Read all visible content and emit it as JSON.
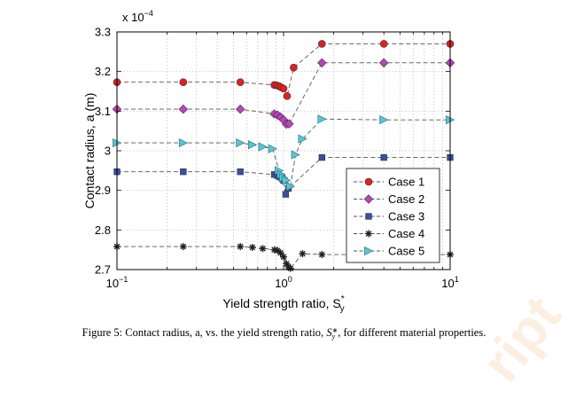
{
  "chart_data": {
    "type": "scatter",
    "xscale": "log",
    "xlim": [
      0.1,
      10
    ],
    "ylim": [
      2.7,
      3.3
    ],
    "y_multiplier": "x 10",
    "y_exponent": "−4",
    "xlabel": "Yield strength ratio, S",
    "xlabel_sub": "y",
    "xlabel_sup": "*",
    "ylabel": "Contact radius, a (m)",
    "grid": true,
    "legend_position": "bottom-right",
    "x_ticks": [
      {
        "value": 0.1,
        "base": "10",
        "exp": "−1"
      },
      {
        "value": 1,
        "base": "10",
        "exp": "0"
      },
      {
        "value": 10,
        "base": "10",
        "exp": "1"
      }
    ],
    "y_ticks": [
      {
        "value": 2.7,
        "label": "2.7"
      },
      {
        "value": 2.8,
        "label": "2.8"
      },
      {
        "value": 2.9,
        "label": "2.9"
      },
      {
        "value": 3.0,
        "label": "3"
      },
      {
        "value": 3.1,
        "label": "3.1"
      },
      {
        "value": 3.2,
        "label": "3.2"
      },
      {
        "value": 3.3,
        "label": "3.3"
      }
    ],
    "series": [
      {
        "name": "Case 1",
        "marker": "circle",
        "color": "#e02020",
        "x": [
          0.1,
          0.25,
          0.55,
          0.88,
          0.91,
          0.94,
          0.97,
          1.0,
          1.05,
          1.15,
          1.7,
          4.0,
          10.0
        ],
        "y": [
          3.173,
          3.173,
          3.173,
          3.166,
          3.165,
          3.163,
          3.16,
          3.157,
          3.138,
          3.21,
          3.27,
          3.27,
          3.27
        ]
      },
      {
        "name": "Case 2",
        "marker": "diamond",
        "color": "#c040c0",
        "x": [
          0.1,
          0.25,
          0.55,
          0.88,
          0.92,
          0.96,
          1.0,
          1.04,
          1.08,
          1.7,
          4.0,
          10.0
        ],
        "y": [
          3.105,
          3.105,
          3.105,
          3.093,
          3.09,
          3.085,
          3.078,
          3.067,
          3.068,
          3.222,
          3.222,
          3.222
        ]
      },
      {
        "name": "Case 3",
        "marker": "square",
        "color": "#3a4fa0",
        "x": [
          0.1,
          0.25,
          0.55,
          0.88,
          0.92,
          0.95,
          0.98,
          1.0,
          1.03,
          1.07,
          1.7,
          4.0,
          10.0
        ],
        "y": [
          2.947,
          2.947,
          2.947,
          2.94,
          2.937,
          2.934,
          2.93,
          2.925,
          2.89,
          2.905,
          2.983,
          2.983,
          2.983
        ]
      },
      {
        "name": "Case 4",
        "marker": "star",
        "color": "#202020",
        "x": [
          0.1,
          0.25,
          0.55,
          0.65,
          0.75,
          0.88,
          0.92,
          0.96,
          1.0,
          1.04,
          1.07,
          1.1,
          1.3,
          1.7,
          10.0
        ],
        "y": [
          2.758,
          2.758,
          2.758,
          2.756,
          2.753,
          2.75,
          2.748,
          2.742,
          2.732,
          2.715,
          2.707,
          2.703,
          2.74,
          2.738,
          2.738
        ]
      },
      {
        "name": "Case 5",
        "marker": "triangle-right",
        "color": "#58c4d4",
        "x": [
          0.1,
          0.25,
          0.55,
          0.65,
          0.75,
          0.86,
          0.94,
          0.97,
          1.0,
          1.04,
          1.1,
          1.18,
          1.3,
          1.7,
          4.0,
          10.0
        ],
        "y": [
          3.02,
          3.02,
          3.02,
          3.015,
          3.01,
          3.005,
          2.95,
          2.94,
          2.932,
          2.925,
          2.91,
          2.99,
          3.03,
          3.08,
          3.078,
          3.078
        ]
      }
    ]
  },
  "caption": "Figure 5: Contact radius, a, vs. the yield strength ratio, S∗y, for different material properties.",
  "watermark": "ript"
}
